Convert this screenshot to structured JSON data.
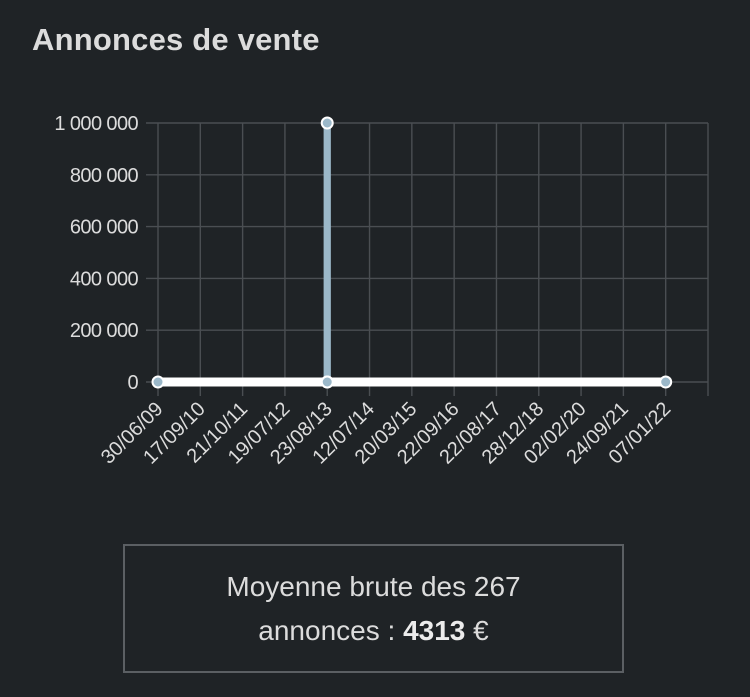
{
  "title": "Annonces de vente",
  "summary": {
    "line1": "Moyenne brute des 267",
    "prefix": "annonces : ",
    "value": "4313",
    "suffix": " €"
  },
  "colors": {
    "background": "#1f2326",
    "grid": "#4a4e52",
    "line": "#9bb8c9",
    "zero_line": "#ffffff",
    "text": "#dcdcdc"
  },
  "chart_data": {
    "type": "line",
    "title": "Annonces de vente",
    "xlabel": "",
    "ylabel": "",
    "x_tick_labels": [
      "30/06/09",
      "17/09/10",
      "21/10/11",
      "19/07/12",
      "23/08/13",
      "12/07/14",
      "20/03/15",
      "22/09/16",
      "22/08/17",
      "28/12/18",
      "02/02/20",
      "24/09/21",
      "07/01/22"
    ],
    "y_tick_labels": [
      "0",
      "200 000",
      "400 000",
      "600 000",
      "800 000",
      "1 000 000"
    ],
    "y_ticks": [
      0,
      200000,
      400000,
      600000,
      800000,
      1000000
    ],
    "ylim": [
      0,
      1000000
    ],
    "grid": true,
    "series": [
      {
        "points": [
          {
            "x": "30/06/09",
            "y": 0
          },
          {
            "x": "23/08/13",
            "y": 0
          },
          {
            "x": "23/08/13",
            "y": 1000000
          },
          {
            "x": "23/08/13",
            "y": 0
          },
          {
            "x": "07/01/22",
            "y": 0
          }
        ]
      }
    ]
  }
}
